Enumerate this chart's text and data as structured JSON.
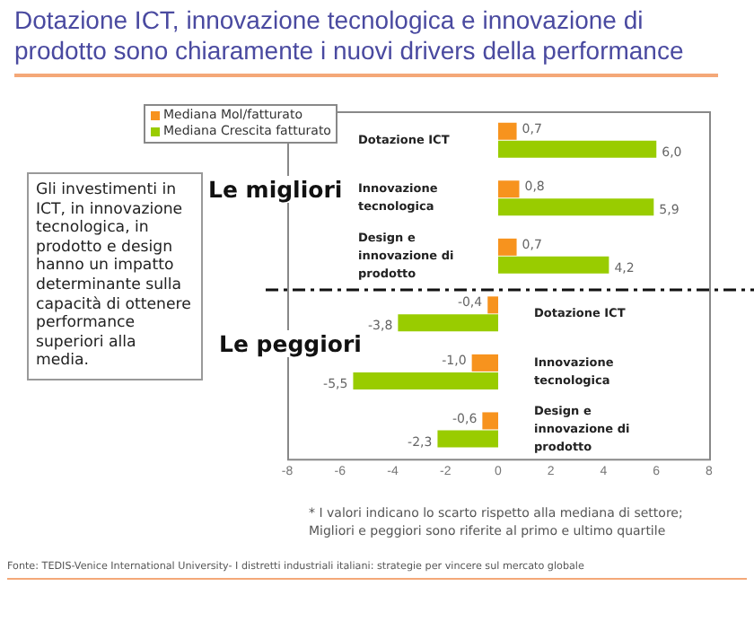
{
  "chart_data": {
    "type": "bar",
    "orientation": "horizontal",
    "title": "Dotazione ICT, innovazione tecnologica e innovazione di prodotto sono chiaramente i nuovi drivers della performance",
    "categories": [
      "Dotazione ICT",
      "Innovazione tecnologica",
      "Design e innovazione di prodotto",
      "Dotazione ICT",
      "Innovazione tecnologica",
      "Design e innovazione di prodotto"
    ],
    "series": [
      {
        "name": "Mediana Mol/fatturato",
        "color": "#f7931e",
        "values": [
          0.7,
          0.8,
          0.7,
          -0.4,
          -1.0,
          -0.6
        ],
        "value_labels": [
          "0,7",
          "0,8",
          "0,7",
          "-0,4",
          "-1,0",
          "-0,6"
        ]
      },
      {
        "name": "Mediana Crescita fatturato",
        "color": "#99cc00",
        "values": [
          6.0,
          5.9,
          4.2,
          -3.8,
          -5.5,
          -2.3
        ],
        "value_labels": [
          "6,0",
          "5,9",
          "4,2",
          "-3,8",
          "-5,5",
          "-2,3"
        ]
      }
    ],
    "xlim": [
      -8,
      8
    ],
    "xticks": [
      -8,
      -6,
      -4,
      -2,
      0,
      2,
      4,
      6,
      8
    ],
    "grid": false,
    "legend": "top left",
    "annotations": [
      "Le migliori",
      "Le peggiori",
      "Gli investimenti in ICT, in innovazione tecnologica, in prodotto e design hanno un impatto determinante sulla capacità di ottenere performance superiori alla media.",
      "* I valori indicano lo scarto rispetto alla mediana di settore; Migliori e peggiori sono riferite al primo e ultimo quartile",
      "Fonte: TEDIS-Venice International University- I distretti industriali italiani: strategie per vincere sul mercato globale"
    ]
  }
}
